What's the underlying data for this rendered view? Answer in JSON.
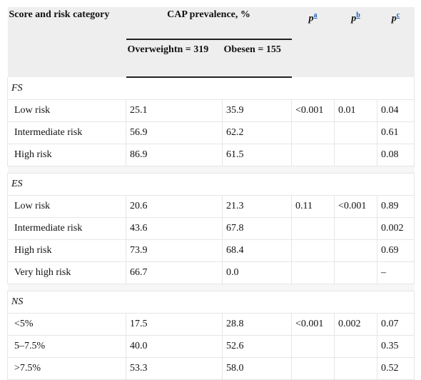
{
  "header": {
    "score_col": "Score and risk category",
    "cap_prev": "CAP prevalence, %",
    "pa": {
      "p": "p",
      "sup": "a"
    },
    "pb": {
      "p": "p",
      "sup": "b"
    },
    "pc": {
      "p": "p",
      "sup": "c"
    },
    "overweight": "Overweightn = 319",
    "obese": "Obesen = 155"
  },
  "sections": [
    {
      "name": "FS",
      "rows": [
        {
          "label": "Low risk",
          "overweight": "25.1",
          "obese": "35.9",
          "pa": "<0.001",
          "pb": "0.01",
          "pc": "0.04"
        },
        {
          "label": "Intermediate risk",
          "overweight": "56.9",
          "obese": "62.2",
          "pa": "",
          "pb": "",
          "pc": "0.61"
        },
        {
          "label": "High risk",
          "overweight": "86.9",
          "obese": "61.5",
          "pa": "",
          "pb": "",
          "pc": "0.08"
        }
      ]
    },
    {
      "name": "ES",
      "rows": [
        {
          "label": "Low risk",
          "overweight": "20.6",
          "obese": "21.3",
          "pa": "0.11",
          "pb": "<0.001",
          "pc": "0.89"
        },
        {
          "label": "Intermediate risk",
          "overweight": "43.6",
          "obese": "67.8",
          "pa": "",
          "pb": "",
          "pc": "0.002"
        },
        {
          "label": "High risk",
          "overweight": "73.9",
          "obese": "68.4",
          "pa": "",
          "pb": "",
          "pc": "0.69"
        },
        {
          "label": "Very high risk",
          "overweight": "66.7",
          "obese": "0.0",
          "pa": "",
          "pb": "",
          "pc": "–"
        }
      ]
    },
    {
      "name": "NS",
      "rows": [
        {
          "label": "<5%",
          "overweight": "17.5",
          "obese": "28.8",
          "pa": "<0.001",
          "pb": "0.002",
          "pc": "0.07"
        },
        {
          "label": "5–7.5%",
          "overweight": "40.0",
          "obese": "52.6",
          "pa": "",
          "pb": "",
          "pc": "0.35"
        },
        {
          "label": ">7.5%",
          "overweight": "53.3",
          "obese": "58.0",
          "pa": "",
          "pb": "",
          "pc": "0.52"
        }
      ]
    }
  ]
}
